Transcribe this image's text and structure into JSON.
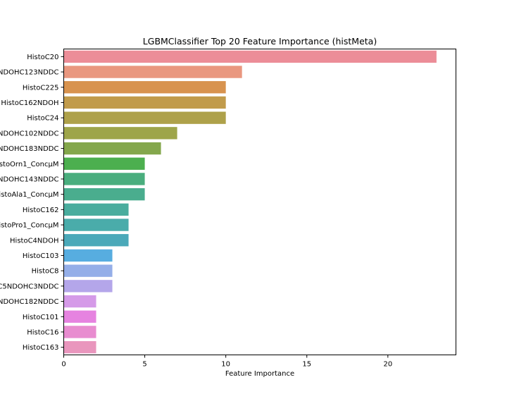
{
  "chart_data": {
    "type": "bar",
    "orientation": "horizontal",
    "title": "LGBMClassifier Top 20 Feature Importance (histMeta)",
    "xlabel": "Feature Importance",
    "ylabel": "",
    "xlim": [
      0,
      24.2
    ],
    "xticks": [
      0,
      5,
      10,
      15,
      20
    ],
    "grid": false,
    "categories": [
      "HistoC20",
      "NDOHC123NDDC",
      "HistoC225",
      "HistoC162NDOH",
      "HistoC24",
      "NDOHC102NDDC",
      "NDOHC183NDDC",
      "stoOrn1_ConcµM",
      "NDOHC143NDDC",
      "istoAla1_ConcµM",
      "HistoC162",
      "istoPro1_ConcµM",
      "HistoC4NDOH",
      "HistoC103",
      "HistoC8",
      "C5NDOHC3NDDC",
      "NDOHC182NDDC",
      "HistoC101",
      "HistoC16",
      "HistoC163"
    ],
    "values": [
      23,
      11,
      10,
      10,
      10,
      7,
      6,
      5,
      5,
      5,
      4,
      4,
      4,
      3,
      3,
      3,
      2,
      2,
      2,
      2
    ],
    "colors": [
      "#ec8d98",
      "#e9977f",
      "#d8934f",
      "#c19b4b",
      "#aea14a",
      "#9ea54a",
      "#84a74c",
      "#4caf4f",
      "#4aae7e",
      "#4aad8e",
      "#4aad9e",
      "#4aacaa",
      "#4ba9b9",
      "#57ade0",
      "#94aee8",
      "#b4a6ea",
      "#d59ae8",
      "#e683e0",
      "#e88cd0",
      "#e996bd"
    ]
  }
}
